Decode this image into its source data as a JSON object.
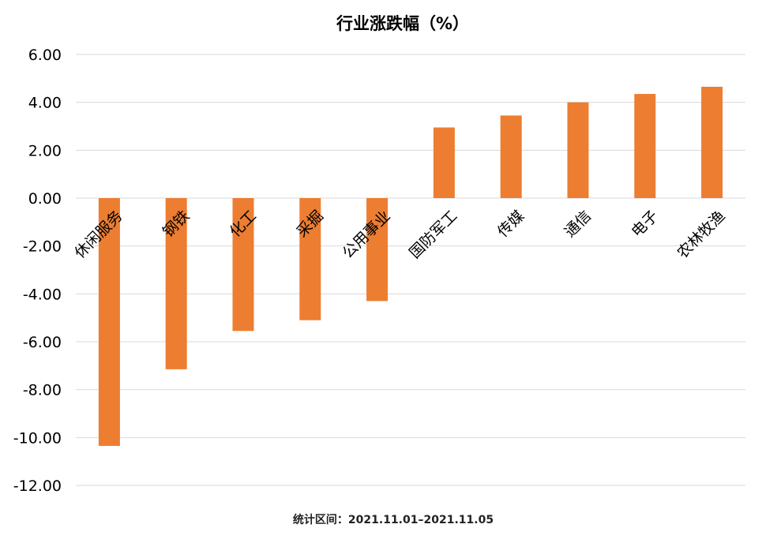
{
  "chart_data": {
    "type": "bar",
    "title": "行业涨跌幅（%）",
    "xlabel": "",
    "ylabel": "",
    "categories": [
      "休闲服务",
      "钢铁",
      "化工",
      "采掘",
      "公用事业",
      "国防军工",
      "传媒",
      "通信",
      "电子",
      "农林牧渔"
    ],
    "values": [
      -10.35,
      -7.15,
      -5.55,
      -5.1,
      -4.3,
      2.95,
      3.45,
      4.0,
      4.35,
      4.65
    ],
    "ylim": [
      -12,
      6
    ],
    "yticks": [
      "6.00",
      "4.00",
      "2.00",
      "0.00",
      "-2.00",
      "-4.00",
      "-6.00",
      "-8.00",
      "-10.00",
      "-12.00"
    ],
    "grid": true,
    "bar_color": "#ED7D31"
  },
  "footnote": "统计区间：2021.11.01–2021.11.05"
}
